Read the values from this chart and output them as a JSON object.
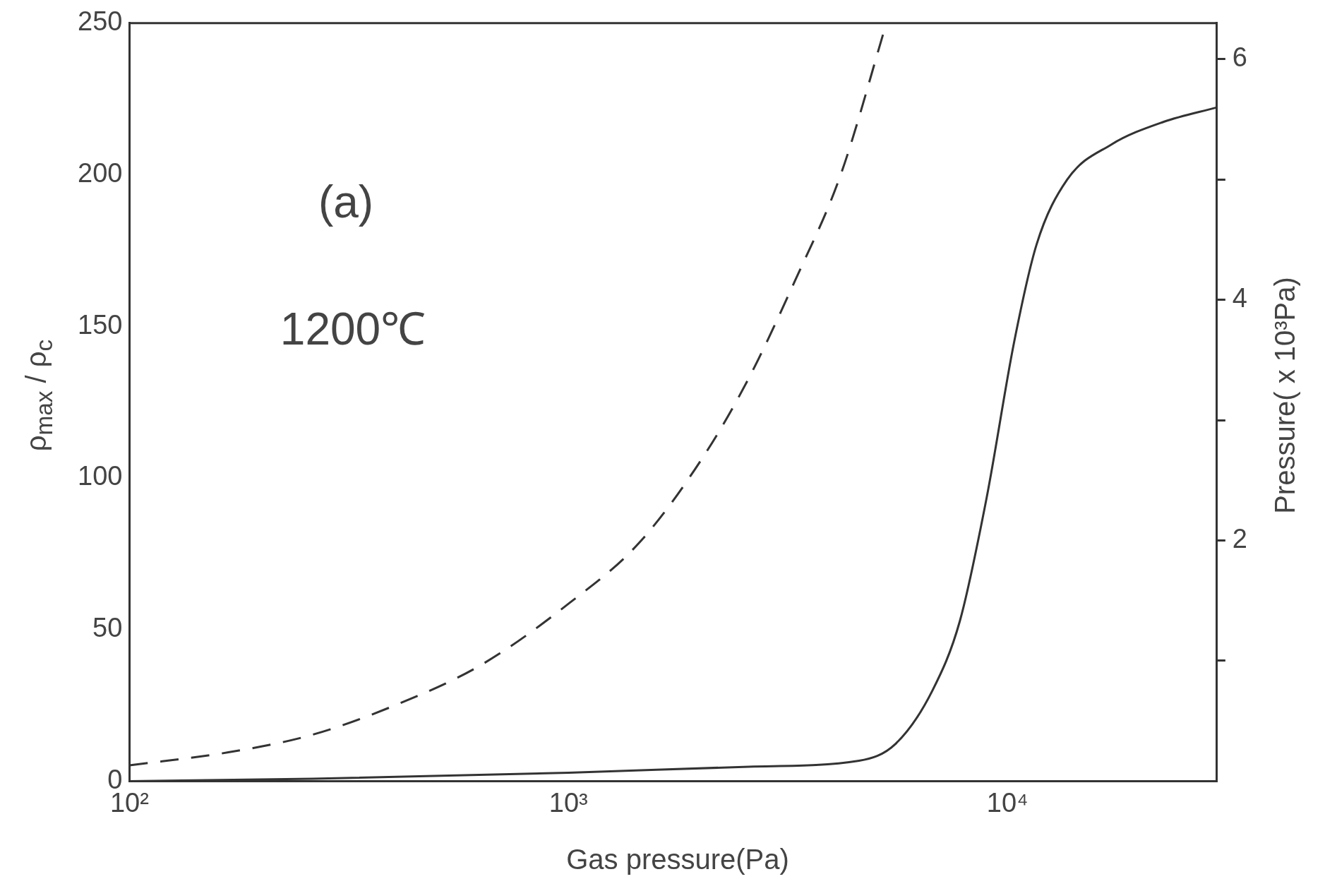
{
  "chart_data": {
    "type": "line",
    "xlabel": "Gas pressure(Pa)",
    "ylabel": "ρ$_{max}$ / ρ$_{c}$",
    "y2label": "Pressure( x 10³Pa)",
    "annotations": [
      "(a)",
      "1200℃"
    ],
    "log": "x",
    "grid": false,
    "legend": false,
    "marker": "none",
    "xlim": [
      100,
      30000
    ],
    "xticks": [
      {
        "value": 100,
        "label": "10²"
      },
      {
        "value": 1000,
        "label": "10³"
      },
      {
        "value": 10000,
        "label": "10⁴"
      }
    ],
    "ylim": [
      0,
      250
    ],
    "yticks": [
      0,
      50,
      100,
      150,
      200,
      250
    ],
    "y2lim": [
      0,
      6.3
    ],
    "y2ticks": [
      {
        "value": 1,
        "label": null
      },
      2,
      {
        "value": 3,
        "label": null
      },
      4,
      {
        "value": 5,
        "label": null
      },
      6
    ],
    "series": [
      {
        "color": "#333333",
        "line_style": "dashed",
        "x": [
          100,
          168,
          261,
          407,
          632,
          1000,
          1449,
          2028,
          2577,
          3280,
          4170,
          5300
        ],
        "values": [
          5.2,
          9.5,
          15.3,
          25.3,
          38.3,
          58.5,
          78.6,
          107,
          133,
          165,
          200,
          250
        ]
      },
      {
        "color": "#333333",
        "line_style": "solid",
        "axis": "y2",
        "x": [
          100,
          261,
          1000,
          2577,
          4590,
          5560,
          6740,
          7790,
          8960,
          10370,
          11650,
          13680,
          17220,
          22700,
          30000
        ],
        "values": [
          0,
          0.02,
          0.07,
          0.12,
          0.17,
          0.31,
          0.75,
          1.33,
          2.35,
          3.66,
          4.46,
          5.0,
          5.29,
          5.48,
          5.6
        ]
      }
    ]
  }
}
